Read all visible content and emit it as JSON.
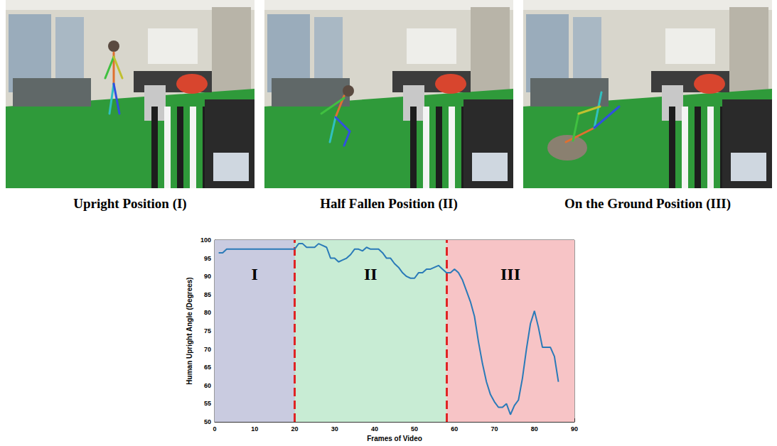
{
  "panels": [
    {
      "caption": "Upright Position (I)"
    },
    {
      "caption": "Half Fallen Position (II)"
    },
    {
      "caption": "On the Ground Position (III)"
    }
  ],
  "chart_data": {
    "type": "line",
    "x_label": "Frames of Video",
    "y_label": "Human Upright Angle (Degrees)",
    "x": [
      1,
      2,
      3,
      4,
      5,
      6,
      7,
      8,
      9,
      10,
      11,
      12,
      13,
      14,
      15,
      16,
      17,
      18,
      19,
      20,
      21,
      22,
      23,
      24,
      25,
      26,
      27,
      28,
      29,
      30,
      31,
      32,
      33,
      34,
      35,
      36,
      37,
      38,
      39,
      40,
      41,
      42,
      43,
      44,
      45,
      46,
      47,
      48,
      49,
      50,
      51,
      52,
      53,
      54,
      55,
      56,
      57,
      58,
      59,
      60,
      61,
      62,
      63,
      64,
      65,
      66,
      67,
      68,
      69,
      70,
      71,
      72,
      73,
      74,
      75,
      76,
      77,
      78,
      79,
      80,
      81,
      82,
      83,
      84,
      85,
      86
    ],
    "values": [
      96.5,
      96.5,
      97.5,
      97.5,
      97.5,
      97.5,
      97.5,
      97.5,
      97.5,
      97.5,
      97.5,
      97.5,
      97.5,
      97.5,
      97.5,
      97.5,
      97.5,
      97.5,
      97.5,
      97.5,
      99,
      99,
      98,
      98,
      98,
      99,
      98.5,
      98,
      95,
      95,
      94,
      94.5,
      95,
      96,
      97.5,
      97.5,
      97,
      98,
      97.5,
      97.5,
      97.5,
      96.5,
      95,
      95,
      93.5,
      92.5,
      91,
      90,
      89.5,
      89.5,
      91,
      91,
      92,
      92,
      92.5,
      93,
      92,
      91,
      91,
      92,
      91,
      89,
      86,
      83,
      79,
      72,
      66,
      61,
      57.5,
      55.5,
      54,
      54,
      55,
      52,
      54.5,
      56,
      62,
      70,
      77,
      80.5,
      76,
      70.5,
      70.5,
      70.5,
      68,
      61
    ],
    "color": "#2a7ab8",
    "xlim": [
      0,
      90
    ],
    "xticks": [
      0,
      10,
      20,
      30,
      40,
      50,
      60,
      70,
      80,
      90
    ],
    "ylim": [
      50,
      100
    ],
    "yticks": [
      50,
      55,
      60,
      65,
      70,
      75,
      80,
      85,
      90,
      95,
      100
    ],
    "grid": true,
    "regions": [
      {
        "label": "I",
        "start": 0,
        "end": 20,
        "color": "#c9cbe0"
      },
      {
        "label": "II",
        "start": 20,
        "end": 58,
        "color": "#c8ecd4"
      },
      {
        "label": "III",
        "start": 58,
        "end": 90,
        "color": "#f7c4c6"
      }
    ],
    "boundaries": [
      20,
      58
    ],
    "boundary_color": "#e02424",
    "boundary_style": "dashed"
  }
}
